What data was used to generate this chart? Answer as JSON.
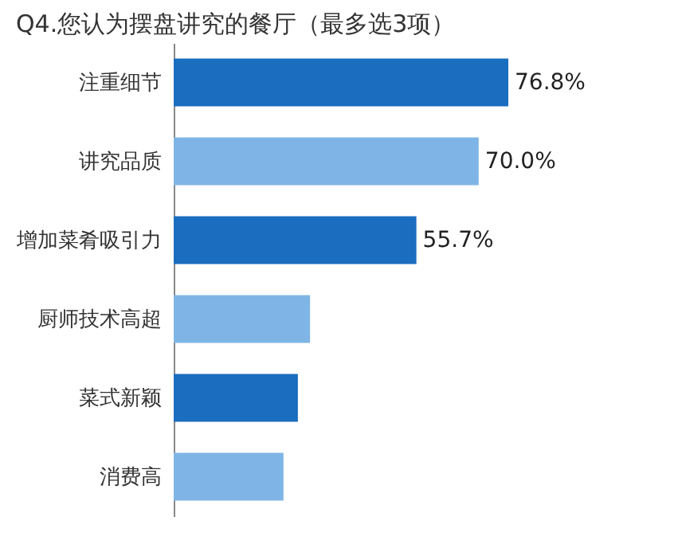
{
  "chart_data": {
    "type": "bar",
    "orientation": "horizontal",
    "title": "Q4.您认为摆盘讲究的餐厅（最多选3项）",
    "categories": [
      "注重细节",
      "讲究品质",
      "增加菜肴吸引力",
      "厨师技术高超",
      "菜式新颖",
      "消费高"
    ],
    "values": [
      76.8,
      70.0,
      55.7,
      31.3,
      28.5,
      25.2
    ],
    "colors": [
      "#1a6dbf",
      "#7fb5e6",
      "#1a6dbf",
      "#7fb5e6",
      "#1a6dbf",
      "#7fb5e6"
    ],
    "value_labels": [
      "76.8%",
      "70.0%",
      "55.7%",
      null,
      null,
      null
    ],
    "tick_labels": "y",
    "grid": false
  }
}
